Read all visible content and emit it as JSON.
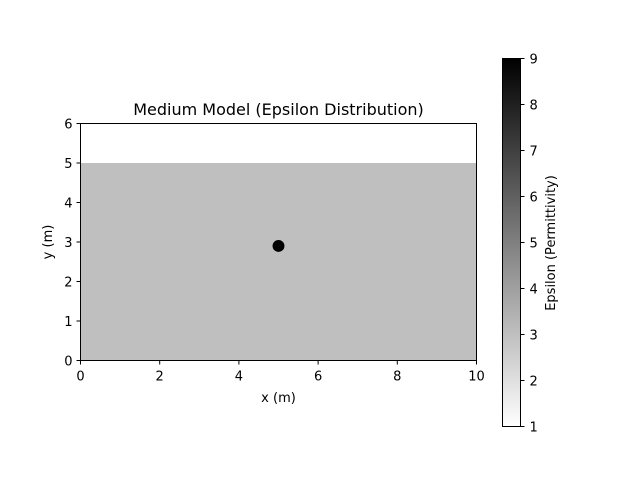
{
  "chart_data": {
    "type": "heatmap",
    "title": "Medium Model (Epsilon Distribution)",
    "xlabel": "x (m)",
    "ylabel": "y (m)",
    "xlim": [
      0,
      10
    ],
    "ylim": [
      0,
      6
    ],
    "xticks": [
      0,
      2,
      4,
      6,
      8,
      10
    ],
    "yticks": [
      0,
      1,
      2,
      3,
      4,
      5,
      6
    ],
    "colormap": "gray_r",
    "background_color": "#ffffff",
    "grid": false,
    "regions": [
      {
        "y_range": [
          0,
          5
        ],
        "x_range": [
          0,
          10
        ],
        "epsilon": 3
      },
      {
        "y_range": [
          5,
          6
        ],
        "x_range": [
          0,
          10
        ],
        "epsilon": 1
      }
    ],
    "inclusions": [
      {
        "x": 5,
        "y": 2.9,
        "radius": 0.15,
        "epsilon": 9
      }
    ],
    "colorbar": {
      "label": "Epsilon (Permittivity)",
      "min": 1,
      "max": 9,
      "ticks": [
        1,
        2,
        3,
        4,
        5,
        6,
        7,
        8,
        9
      ]
    }
  }
}
